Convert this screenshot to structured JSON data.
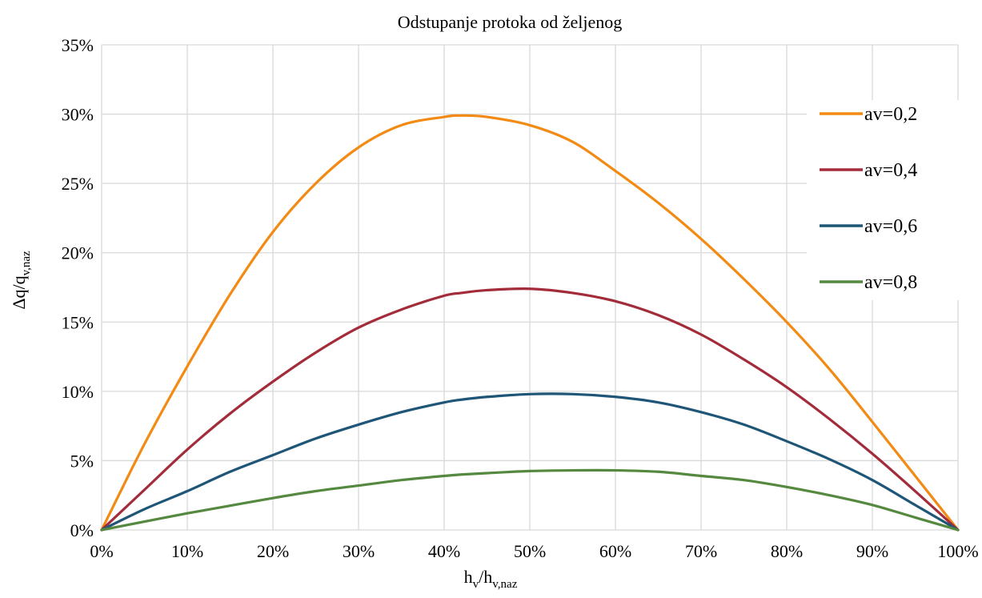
{
  "chart_data": {
    "type": "line",
    "title": "Odstupanje protoka od željenog",
    "xlabel": {
      "main": "h",
      "sub1": "v",
      "mid": "/h",
      "sub2": "v,naz"
    },
    "ylabel": {
      "main": "Δq/q",
      "sub": "v,naz"
    },
    "xlim": [
      0,
      100
    ],
    "ylim": [
      0,
      35
    ],
    "x_ticks": [
      "0%",
      "10%",
      "20%",
      "30%",
      "40%",
      "50%",
      "60%",
      "70%",
      "80%",
      "90%",
      "100%"
    ],
    "y_ticks": [
      "0%",
      "5%",
      "10%",
      "15%",
      "20%",
      "25%",
      "30%",
      "35%"
    ],
    "grid": true,
    "legend_position": "right",
    "x": [
      0,
      5,
      10,
      15,
      20,
      25,
      30,
      35,
      40,
      42,
      45,
      50,
      55,
      60,
      65,
      70,
      75,
      80,
      85,
      90,
      95,
      100
    ],
    "series": [
      {
        "name": "av=0,2",
        "color": "#F28A13",
        "values": [
          0,
          6.2,
          11.8,
          17.0,
          21.5,
          25.0,
          27.6,
          29.2,
          29.8,
          29.9,
          29.8,
          29.2,
          28.0,
          25.9,
          23.6,
          21.0,
          18.1,
          15.0,
          11.6,
          7.8,
          3.9,
          0
        ]
      },
      {
        "name": "av=0,4",
        "color": "#A32C3B",
        "values": [
          0,
          2.9,
          5.8,
          8.4,
          10.7,
          12.8,
          14.6,
          15.9,
          16.9,
          17.1,
          17.3,
          17.4,
          17.1,
          16.5,
          15.5,
          14.1,
          12.3,
          10.3,
          8.0,
          5.5,
          2.8,
          0
        ]
      },
      {
        "name": "av=0,6",
        "color": "#1F5678",
        "values": [
          0,
          1.5,
          2.8,
          4.2,
          5.4,
          6.6,
          7.6,
          8.5,
          9.2,
          9.4,
          9.6,
          9.8,
          9.8,
          9.6,
          9.2,
          8.5,
          7.6,
          6.4,
          5.1,
          3.6,
          1.8,
          0
        ]
      },
      {
        "name": "av=0,8",
        "color": "#55893F",
        "values": [
          0,
          0.6,
          1.2,
          1.75,
          2.3,
          2.8,
          3.2,
          3.6,
          3.9,
          4.0,
          4.1,
          4.25,
          4.3,
          4.3,
          4.2,
          3.9,
          3.6,
          3.1,
          2.5,
          1.8,
          0.9,
          0
        ]
      }
    ]
  }
}
